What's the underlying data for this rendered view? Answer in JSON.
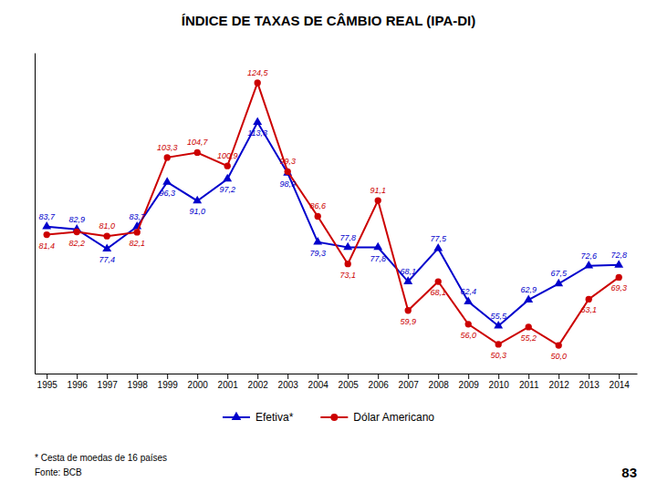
{
  "chart_data": {
    "type": "line",
    "title": "ÍNDICE DE TAXAS DE CÂMBIO REAL (IPA-DI)",
    "x": [
      1995,
      1996,
      1997,
      1998,
      1999,
      2000,
      2001,
      2002,
      2003,
      2004,
      2005,
      2006,
      2007,
      2008,
      2009,
      2010,
      2011,
      2012,
      2013,
      2014
    ],
    "xlim": [
      1994.6,
      2014.6
    ],
    "xticks": [
      1995,
      1996,
      1997,
      1998,
      1999,
      2000,
      2001,
      2002,
      2003,
      2004,
      2005,
      2006,
      2007,
      2008,
      2009,
      2010,
      2011,
      2012,
      2013,
      2014
    ],
    "ylim": [
      42,
      133
    ],
    "series": [
      {
        "name": "Efetiva*",
        "color": "#0000CC",
        "marker": "triangle",
        "values": [
          83.7,
          82.9,
          77.4,
          83.7,
          96.3,
          91.0,
          97.2,
          113.3,
          98.9,
          79.3,
          77.8,
          77.8,
          68.1,
          77.5,
          62.4,
          55.5,
          62.9,
          67.5,
          72.6,
          72.8
        ],
        "value_labels": [
          "83,7",
          "82,9",
          "77,4",
          "83,7",
          "96,3",
          "91,0",
          "97,2",
          "113,3",
          "98,9",
          "79,3",
          "77,8",
          "77,8",
          "68,1",
          "77,5",
          "62,4",
          "55,5",
          "62,9",
          "67,5",
          "72,6",
          "72,8"
        ]
      },
      {
        "name": "Dólar Americano",
        "color": "#CC0000",
        "marker": "circle",
        "values": [
          81.4,
          82.2,
          81.0,
          82.1,
          103.3,
          104.7,
          100.9,
          124.5,
          99.3,
          86.6,
          73.1,
          91.1,
          59.9,
          68.1,
          56.0,
          50.3,
          55.2,
          50.0,
          63.1,
          69.3
        ],
        "value_labels": [
          "81,4",
          "82,2",
          "81,0",
          "82,1",
          "103,3",
          "104,7",
          "100,9",
          "124,5",
          "99,3",
          "86,6",
          "73,1",
          "91,1",
          "59,9",
          "68,1",
          "56,0",
          "50,3",
          "55,2",
          "50,0",
          "63,1",
          "69,3"
        ]
      }
    ],
    "data_labels": true,
    "grid": false,
    "legend": "bottom",
    "tick_labels": "x",
    "annotations": [
      "* Cesta de moedas de 16 países",
      "Fonte: BCB",
      "83"
    ]
  }
}
